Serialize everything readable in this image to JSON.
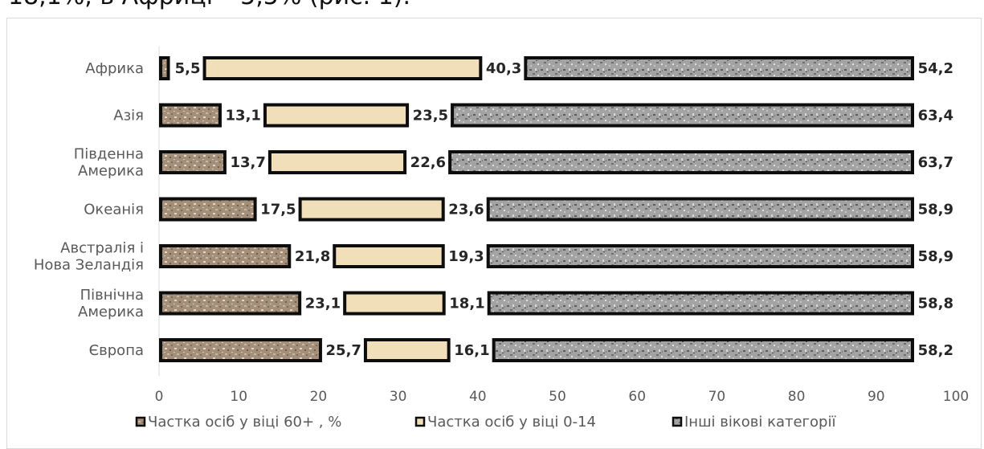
{
  "header": {
    "text": "18,1%, в Африці – 5,5% (рис. 1)."
  },
  "colors": {
    "share60": "#a08f7c",
    "share014": "#f1dfba",
    "other": "#9b9b9b",
    "outline": "#0d0d0d"
  },
  "chart_data": {
    "type": "bar",
    "orientation": "horizontal",
    "stacked": true,
    "categories": [
      "Африка",
      "Азія",
      "Південна Америка",
      "Океанія",
      "Австралія і Нова Зеландія",
      "Північна Америка",
      "Європа"
    ],
    "category_lines": [
      [
        "Африка"
      ],
      [
        "Азія"
      ],
      [
        "Південна",
        "Америка"
      ],
      [
        "Океанія"
      ],
      [
        "Австралія і",
        "Нова Зеландія"
      ],
      [
        "Північна",
        "Америка"
      ],
      [
        "Європа"
      ]
    ],
    "series": [
      {
        "name": "Частка осіб у віці 60+ , %",
        "values": [
          5.5,
          13.1,
          13.7,
          17.5,
          21.8,
          23.1,
          25.7
        ],
        "labels": [
          "5,5",
          "13,1",
          "13,7",
          "17,5",
          "21,8",
          "23,1",
          "25,7"
        ]
      },
      {
        "name": "Частка осіб у віці 0-14",
        "values": [
          40.3,
          23.5,
          22.6,
          23.6,
          19.3,
          18.1,
          16.1
        ],
        "labels": [
          "40,3",
          "23,5",
          "22,6",
          "23,6",
          "19,3",
          "18,1",
          "16,1"
        ]
      },
      {
        "name": "Інші вікові категорії",
        "values": [
          54.2,
          63.4,
          63.7,
          58.9,
          58.9,
          58.8,
          58.2
        ],
        "labels": [
          "54,2",
          "63,4",
          "63,7",
          "58,9",
          "58,9",
          "58,8",
          "58,2"
        ]
      }
    ],
    "x_ticks": [
      "0",
      "10",
      "20",
      "30",
      "40",
      "50",
      "60",
      "70",
      "80",
      "90",
      "100"
    ],
    "xlim": [
      0,
      100
    ],
    "legend_position": "bottom",
    "grid": false
  }
}
